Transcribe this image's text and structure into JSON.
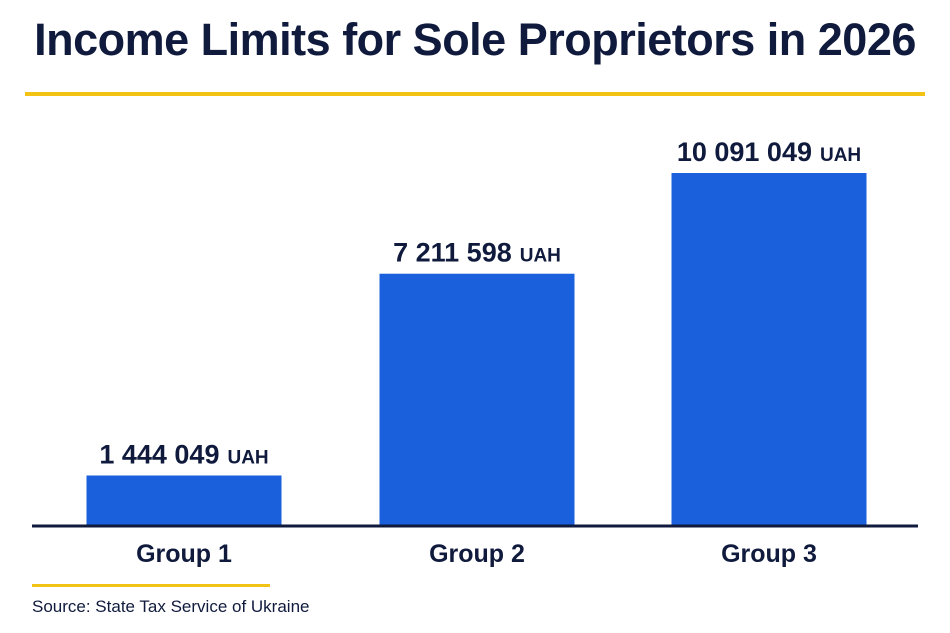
{
  "header": {
    "title": "Income Limits for Sole Proprietors in 2026"
  },
  "footer": {
    "source": "Source: State Tax Service of Ukraine"
  },
  "colors": {
    "bar": "#1a5fdc",
    "text": "#0f1a3c",
    "accent": "#f2c314"
  },
  "chart_data": {
    "type": "bar",
    "title": "Income Limits for Sole Proprietors in 2026",
    "categories": [
      "Group 1",
      "Group 2",
      "Group 3"
    ],
    "values": [
      1444049,
      7211598,
      10091049
    ],
    "value_labels": [
      "1 444 049",
      "7 211 598",
      "10 091 049"
    ],
    "unit": "UAH",
    "xlabel": "",
    "ylabel": "",
    "grid": false,
    "legend": "none"
  }
}
